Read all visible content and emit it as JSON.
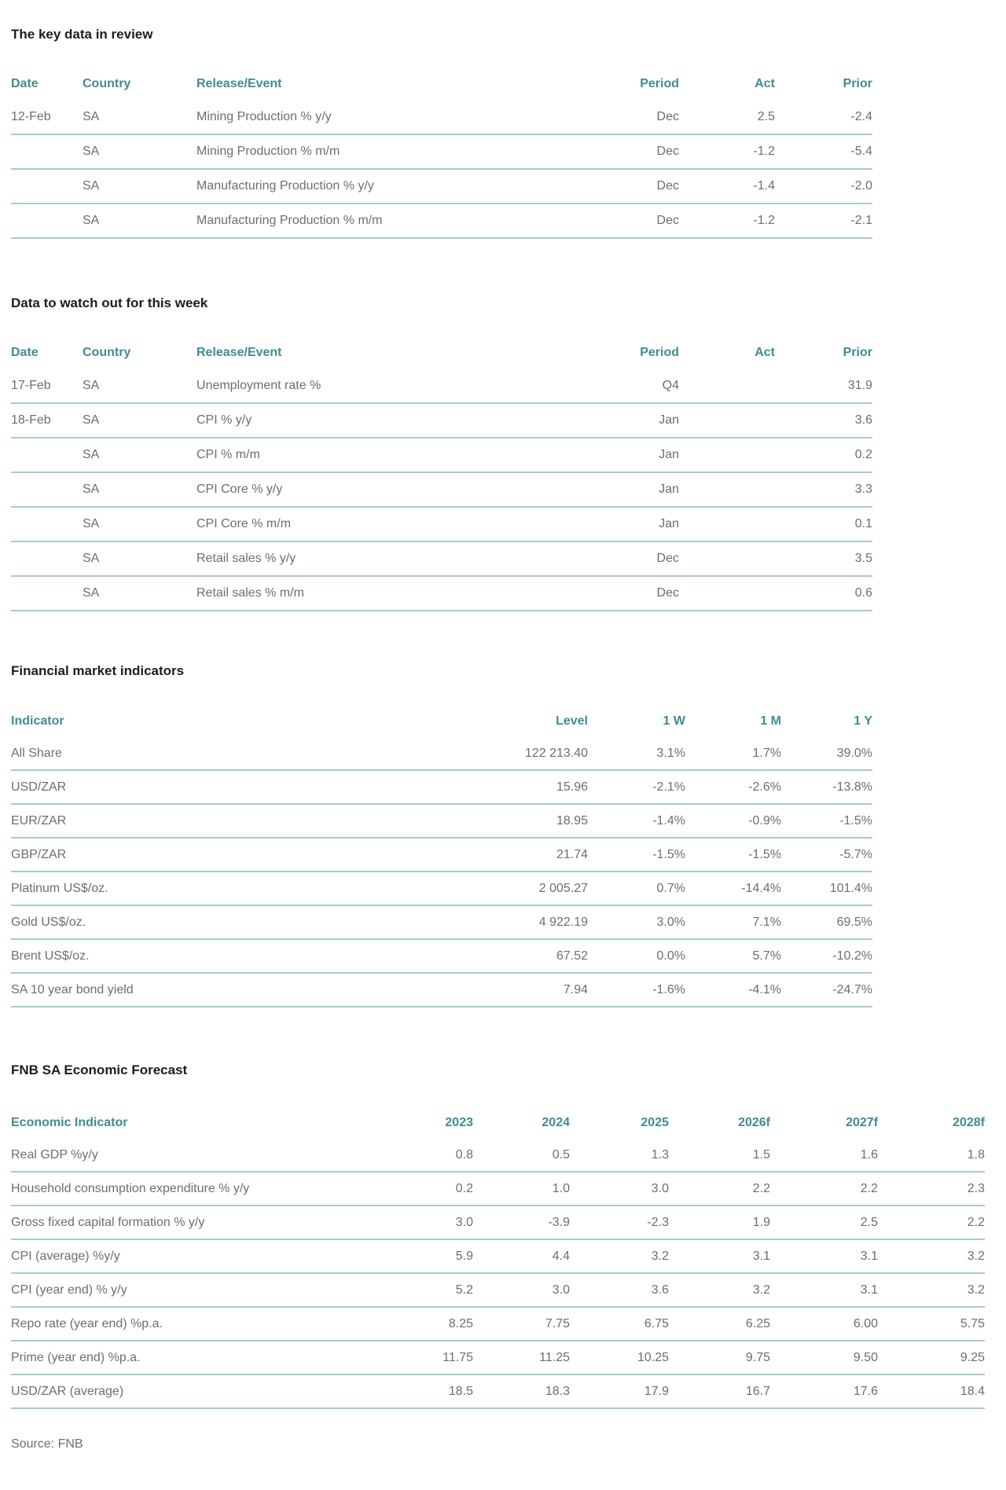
{
  "colors": {
    "accent_teal": "#418C8E",
    "rule_line": "#A5CBD1",
    "body_text": "#6D6E71",
    "heading_text": "#1D1D1B",
    "background": "#FFFFFF"
  },
  "sections": {
    "key_data": {
      "title": "The key data in review",
      "columns": [
        "Date",
        "Country",
        "Release/Event",
        "Period",
        "Act",
        "Prior"
      ],
      "rows": [
        [
          "12-Feb",
          "SA",
          "Mining Production % y/y",
          "Dec",
          "2.5",
          "-2.4"
        ],
        [
          "",
          "SA",
          "Mining Production % m/m",
          "Dec",
          "-1.2",
          "-5.4"
        ],
        [
          "",
          "SA",
          "Manufacturing Production % y/y",
          "Dec",
          "-1.4",
          "-2.0"
        ],
        [
          "",
          "SA",
          "Manufacturing Production % m/m",
          "Dec",
          "-1.2",
          "-2.1"
        ]
      ]
    },
    "watch": {
      "title": "Data to watch out for this week",
      "columns": [
        "Date",
        "Country",
        "Release/Event",
        "Period",
        "Act",
        "Prior"
      ],
      "rows": [
        [
          "17-Feb",
          "SA",
          "Unemployment rate %",
          "Q4",
          "",
          "31.9"
        ],
        [
          "18-Feb",
          "SA",
          "CPI % y/y",
          "Jan",
          "",
          "3.6"
        ],
        [
          "",
          "SA",
          "CPI % m/m",
          "Jan",
          "",
          "0.2"
        ],
        [
          "",
          "SA",
          "CPI Core % y/y",
          "Jan",
          "",
          "3.3"
        ],
        [
          "",
          "SA",
          "CPI Core % m/m",
          "Jan",
          "",
          "0.1"
        ],
        [
          "",
          "SA",
          "Retail sales % y/y",
          "Dec",
          "",
          "3.5"
        ],
        [
          "",
          "SA",
          "Retail sales % m/m",
          "Dec",
          "",
          "0.6"
        ]
      ]
    },
    "financial": {
      "title": "Financial market indicators",
      "columns": [
        "Indicator",
        "Level",
        "1 W",
        "1 M",
        "1 Y"
      ],
      "rows": [
        [
          "All Share",
          "122 213.40",
          "3.1%",
          "1.7%",
          "39.0%"
        ],
        [
          "USD/ZAR",
          "15.96",
          "-2.1%",
          "-2.6%",
          "-13.8%"
        ],
        [
          "EUR/ZAR",
          "18.95",
          "-1.4%",
          "-0.9%",
          "-1.5%"
        ],
        [
          "GBP/ZAR",
          "21.74",
          "-1.5%",
          "-1.5%",
          "-5.7%"
        ],
        [
          "Platinum US$/oz.",
          "2 005.27",
          "0.7%",
          "-14.4%",
          "101.4%"
        ],
        [
          "Gold US$/oz.",
          "4 922.19",
          "3.0%",
          "7.1%",
          "69.5%"
        ],
        [
          "Brent US$/oz.",
          "67.52",
          "0.0%",
          "5.7%",
          "-10.2%"
        ],
        [
          "SA 10 year bond yield",
          "7.94",
          "-1.6%",
          "-4.1%",
          "-24.7%"
        ]
      ]
    },
    "forecast": {
      "title": "FNB SA Economic Forecast",
      "columns": [
        "Economic Indicator",
        "2023",
        "2024",
        "2025",
        "2026f",
        "2027f",
        "2028f"
      ],
      "rows": [
        [
          "Real GDP %y/y",
          "0.8",
          "0.5",
          "1.3",
          "1.5",
          "1.6",
          "1.8"
        ],
        [
          "Household consumption expenditure % y/y",
          "0.2",
          "1.0",
          "3.0",
          "2.2",
          "2.2",
          "2.3"
        ],
        [
          "Gross fixed capital formation % y/y",
          "3.0",
          "-3.9",
          "-2.3",
          "1.9",
          "2.5",
          "2.2"
        ],
        [
          "CPI (average) %y/y",
          "5.9",
          "4.4",
          "3.2",
          "3.1",
          "3.1",
          "3.2"
        ],
        [
          "CPI (year end) % y/y",
          "5.2",
          "3.0",
          "3.6",
          "3.2",
          "3.1",
          "3.2"
        ],
        [
          "Repo rate (year end) %p.a.",
          "8.25",
          "7.75",
          "6.75",
          "6.25",
          "6.00",
          "5.75"
        ],
        [
          "Prime (year end) %p.a.",
          "11.75",
          "11.25",
          "10.25",
          "9.75",
          "9.50",
          "9.25"
        ],
        [
          "USD/ZAR (average)",
          "18.5",
          "18.3",
          "17.9",
          "16.7",
          "17.6",
          "18.4"
        ]
      ]
    }
  },
  "source": "Source: FNB"
}
